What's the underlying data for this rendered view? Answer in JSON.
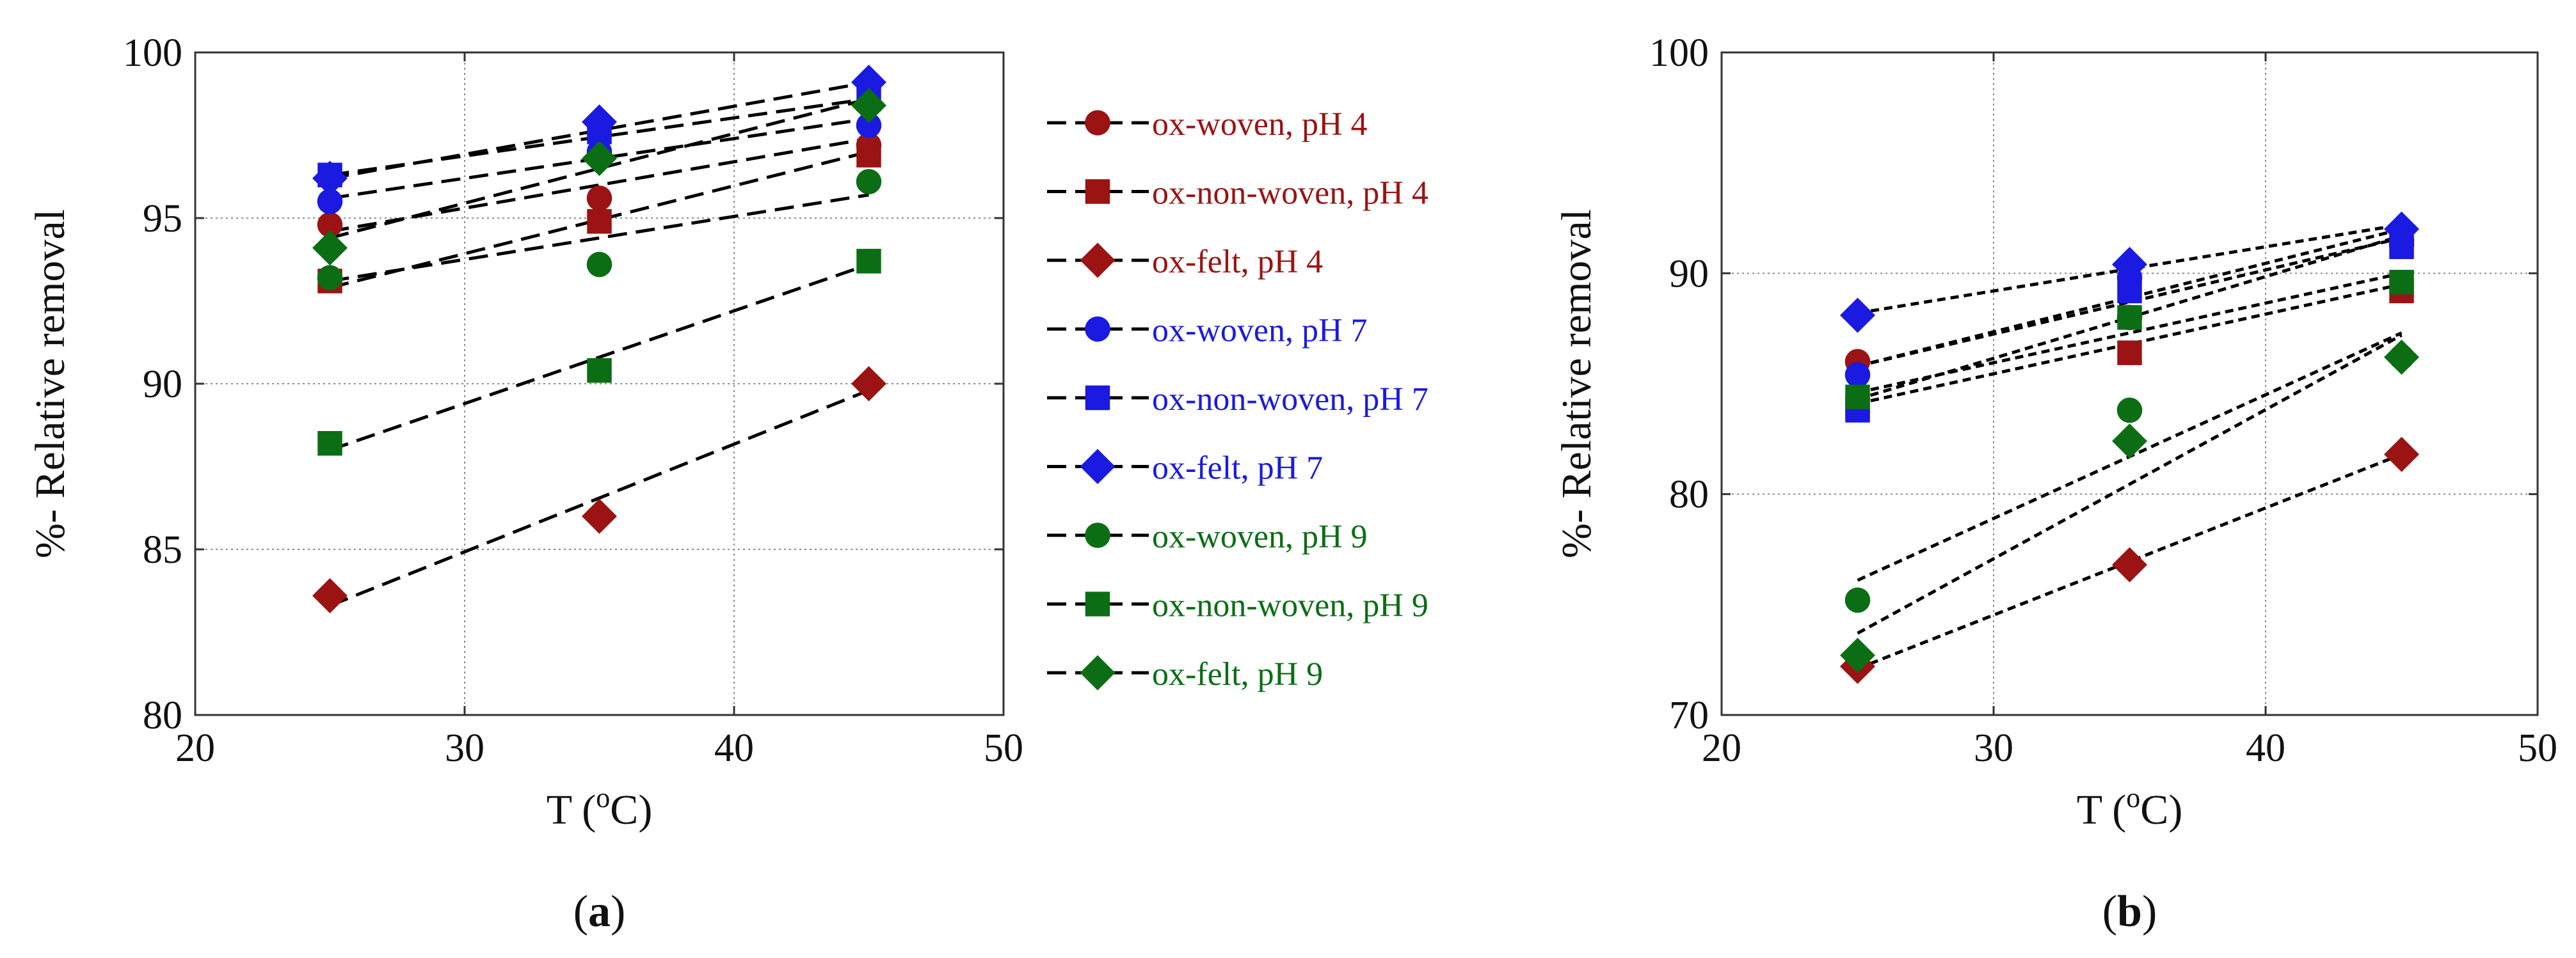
{
  "colors": {
    "red": "#9b1313",
    "blue": "#1a1ae0",
    "green": "#0b6e14",
    "fit": "#000000",
    "grid": "#8a8a8a"
  },
  "legend": [
    {
      "label": "ox-woven, pH 4",
      "marker": "circle",
      "color": "#9b1313"
    },
    {
      "label": "ox-non-woven, pH 4",
      "marker": "square",
      "color": "#9b1313"
    },
    {
      "label": "ox-felt, pH 4",
      "marker": "diamond",
      "color": "#9b1313"
    },
    {
      "label": "ox-woven, pH 7",
      "marker": "circle",
      "color": "#1a1ae0"
    },
    {
      "label": "ox-non-woven, pH 7",
      "marker": "square",
      "color": "#1a1ae0"
    },
    {
      "label": "ox-felt, pH 7",
      "marker": "diamond",
      "color": "#1a1ae0"
    },
    {
      "label": "ox-woven, pH 9",
      "marker": "circle",
      "color": "#0b6e14"
    },
    {
      "label": "ox-non-woven, pH 9",
      "marker": "square",
      "color": "#0b6e14"
    },
    {
      "label": "ox-felt, pH 9",
      "marker": "diamond",
      "color": "#0b6e14"
    }
  ],
  "chart_data": [
    {
      "type": "scatter",
      "panel": "a",
      "caption": "(a)",
      "xlabel": "T (°C)",
      "ylabel": "%- Relative removal",
      "xlim": [
        20,
        50
      ],
      "ylim": [
        80,
        100
      ],
      "xticks": [
        20,
        30,
        40,
        50
      ],
      "yticks": [
        80,
        85,
        90,
        95,
        100
      ],
      "grid": true,
      "fit_style": "long-dash",
      "x": [
        25,
        35,
        45
      ],
      "series": [
        {
          "name": "ox-woven, pH 4",
          "marker": "circle",
          "color": "#9b1313",
          "values": [
            94.8,
            95.6,
            97.2
          ],
          "fit": [
            94.6,
            97.4
          ]
        },
        {
          "name": "ox-non-woven, pH 4",
          "marker": "square",
          "color": "#9b1313",
          "values": [
            93.1,
            94.9,
            96.9
          ],
          "fit": [
            92.9,
            97.0
          ]
        },
        {
          "name": "ox-felt, pH 4",
          "marker": "diamond",
          "color": "#9b1313",
          "values": [
            83.6,
            86.0,
            90.0
          ],
          "fit": [
            83.3,
            89.8
          ]
        },
        {
          "name": "ox-woven, pH 7",
          "marker": "circle",
          "color": "#1a1ae0",
          "values": [
            95.5,
            97.0,
            97.8
          ],
          "fit": [
            95.6,
            98.0
          ]
        },
        {
          "name": "ox-non-woven, pH 7",
          "marker": "square",
          "color": "#1a1ae0",
          "values": [
            96.3,
            97.6,
            98.6
          ],
          "fit": [
            96.3,
            98.6
          ]
        },
        {
          "name": "ox-felt, pH 7",
          "marker": "diamond",
          "color": "#1a1ae0",
          "values": [
            96.2,
            97.9,
            99.1
          ],
          "fit": [
            96.2,
            99.1
          ]
        },
        {
          "name": "ox-woven, pH 9",
          "marker": "circle",
          "color": "#0b6e14",
          "values": [
            93.2,
            93.6,
            96.1
          ],
          "fit": [
            93.1,
            95.7
          ]
        },
        {
          "name": "ox-non-woven, pH 9",
          "marker": "square",
          "color": "#0b6e14",
          "values": [
            88.2,
            90.4,
            93.7
          ],
          "fit": [
            88.0,
            93.6
          ]
        },
        {
          "name": "ox-felt, pH 9",
          "marker": "diamond",
          "color": "#0b6e14",
          "values": [
            94.1,
            96.8,
            98.4
          ],
          "fit": [
            94.4,
            98.6
          ]
        }
      ]
    },
    {
      "type": "scatter",
      "panel": "b",
      "caption": "(b)",
      "xlabel": "T (°C)",
      "ylabel": "%- Relative removal",
      "xlim": [
        20,
        50
      ],
      "ylim": [
        70,
        100
      ],
      "xticks": [
        20,
        30,
        40,
        50
      ],
      "yticks": [
        70,
        80,
        90,
        100
      ],
      "grid": true,
      "fit_style": "short-dash",
      "x": [
        25,
        35,
        45
      ],
      "series": [
        {
          "name": "ox-woven, pH 4",
          "marker": "circle",
          "color": "#9b1313",
          "values": [
            86.0,
            88.0,
            91.3
          ],
          "fit": [
            85.8,
            91.6
          ]
        },
        {
          "name": "ox-non-woven, pH 4",
          "marker": "square",
          "color": "#9b1313",
          "values": [
            84.0,
            86.4,
            89.2
          ],
          "fit": [
            84.1,
            89.5
          ]
        },
        {
          "name": "ox-felt, pH 4",
          "marker": "diamond",
          "color": "#9b1313",
          "values": [
            72.2,
            76.8,
            81.8
          ],
          "fit": [
            72.1,
            81.8
          ]
        },
        {
          "name": "ox-woven, pH 7",
          "marker": "circle",
          "color": "#1a1ae0",
          "values": [
            85.4,
            89.8,
            91.5
          ],
          "fit": [
            85.8,
            92.0
          ]
        },
        {
          "name": "ox-non-woven, pH 7",
          "marker": "square",
          "color": "#1a1ae0",
          "values": [
            83.8,
            89.2,
            91.2
          ],
          "fit": [
            84.3,
            91.7
          ]
        },
        {
          "name": "ox-felt, pH 7",
          "marker": "diamond",
          "color": "#1a1ae0",
          "values": [
            88.1,
            90.4,
            92.0
          ],
          "fit": [
            88.2,
            92.2
          ]
        },
        {
          "name": "ox-woven, pH 9",
          "marker": "circle",
          "color": "#0b6e14",
          "values": [
            75.2,
            83.8,
            86.2
          ],
          "fit": [
            76.1,
            87.3
          ]
        },
        {
          "name": "ox-non-woven, pH 9",
          "marker": "square",
          "color": "#0b6e14",
          "values": [
            84.4,
            88.0,
            89.6
          ],
          "fit": [
            84.6,
            90.0
          ]
        },
        {
          "name": "ox-felt, pH 9",
          "marker": "diamond",
          "color": "#0b6e14",
          "values": [
            72.7,
            82.4,
            86.2
          ],
          "fit": [
            73.7,
            87.2
          ]
        }
      ]
    }
  ]
}
